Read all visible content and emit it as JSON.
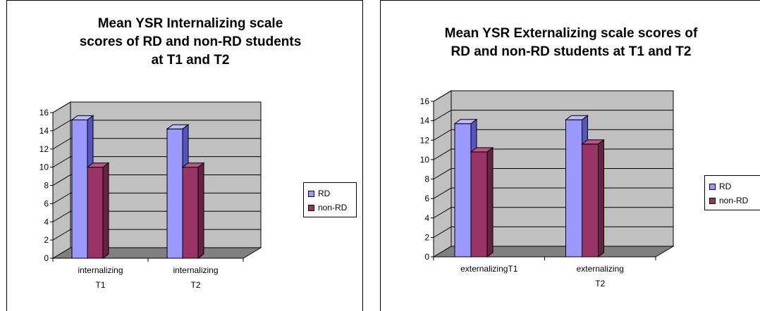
{
  "chart_data": [
    {
      "type": "bar",
      "title": "Mean YSR Internalizing scale\nscores of RD and non-RD students\nat T1 and T2",
      "categories": [
        "internalizing\nT1",
        "internalizing\nT2"
      ],
      "series": [
        {
          "name": "RD",
          "values": [
            15.2,
            14.2
          ]
        },
        {
          "name": "non-RD",
          "values": [
            10.0,
            10.0
          ]
        }
      ],
      "ylim": [
        0,
        16
      ],
      "yticks": [
        0,
        2,
        4,
        6,
        8,
        10,
        12,
        14,
        16
      ],
      "grid": true,
      "legend_position": "right",
      "three_d": true
    },
    {
      "type": "bar",
      "title": "Mean YSR Externalizing scale scores of\nRD and non-RD students at T1 and T2",
      "categories": [
        "externalizingT1",
        "externalizing\nT2"
      ],
      "series": [
        {
          "name": "RD",
          "values": [
            13.7,
            14.1
          ]
        },
        {
          "name": "non-RD",
          "values": [
            10.8,
            11.6
          ]
        }
      ],
      "ylim": [
        0,
        16
      ],
      "yticks": [
        0,
        2,
        4,
        6,
        8,
        10,
        12,
        14,
        16
      ],
      "grid": true,
      "legend_position": "right",
      "three_d": true
    }
  ],
  "colors": {
    "rd_front": "#9999ff",
    "rd_top": "#bbbbff",
    "rd_side": "#5555bb",
    "nonrd_front": "#993366",
    "nonrd_top": "#bb5588",
    "nonrd_side": "#662244",
    "wall": "#c0c0c0",
    "floor": "#808080"
  }
}
